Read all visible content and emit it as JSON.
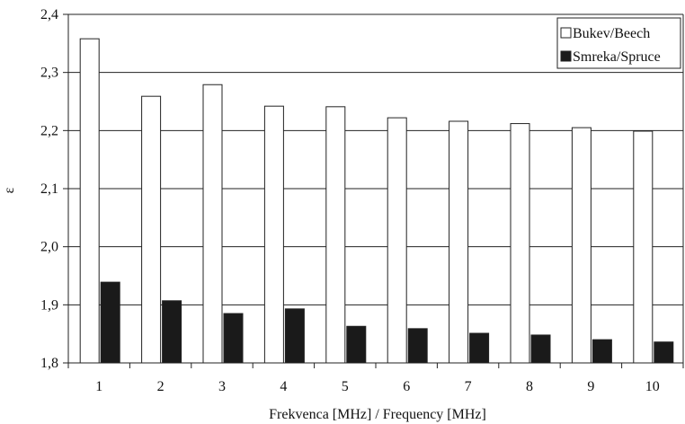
{
  "chart_data": {
    "type": "bar",
    "xlabel": "Frekvenca [MHz] / Frequency [MHz]",
    "ylabel": "ε",
    "ylim": [
      1.8,
      2.4
    ],
    "yticks": [
      "1,8",
      "1,9",
      "2,0",
      "2,1",
      "2,2",
      "2,3",
      "2,4"
    ],
    "categories": [
      "1",
      "2",
      "3",
      "4",
      "5",
      "6",
      "7",
      "8",
      "9",
      "10"
    ],
    "grid": "horizontal",
    "legend_position": "top-right",
    "series": [
      {
        "name": "Bukev/Beech",
        "color": "#ffffff",
        "values": [
          2.358,
          2.259,
          2.279,
          2.242,
          2.241,
          2.222,
          2.216,
          2.212,
          2.205,
          2.199
        ]
      },
      {
        "name": "Smreka/Spruce",
        "color": "#1a1a1a",
        "values": [
          1.939,
          1.907,
          1.885,
          1.893,
          1.863,
          1.859,
          1.851,
          1.848,
          1.84,
          1.836
        ]
      }
    ]
  }
}
